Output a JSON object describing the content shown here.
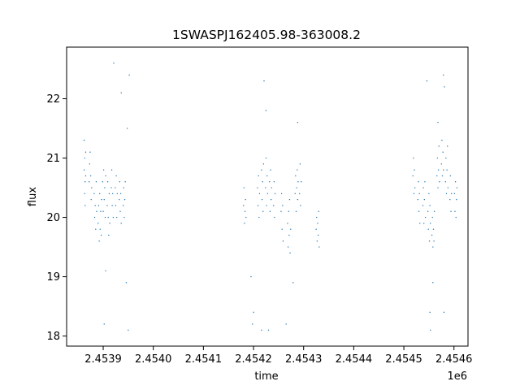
{
  "chart_data": {
    "type": "scatter",
    "title": "1SWASPJ162405.98-363008.2",
    "xlabel": "time",
    "ylabel": "flux",
    "x_offset_label": "1e6",
    "xlim": [
      2453827,
      2454628
    ],
    "ylim": [
      17.83,
      22.87
    ],
    "x_ticks": [
      2453900,
      2454000,
      2454100,
      2454200,
      2454300,
      2454400,
      2454500,
      2454600
    ],
    "x_tick_labels": [
      "2.4539",
      "2.4540",
      "2.4541",
      "2.4542",
      "2.4543",
      "2.4544",
      "2.4545",
      "2.4546"
    ],
    "y_ticks": [
      18,
      19,
      20,
      21,
      22
    ],
    "y_tick_labels": [
      "18",
      "19",
      "20",
      "21",
      "22"
    ],
    "grid": false,
    "marker_color": "#1f77b4",
    "series": [
      {
        "points": [
          [
            2453862,
            21.3
          ],
          [
            2453862,
            20.8
          ],
          [
            2453863,
            20.4
          ],
          [
            2453863,
            21.0
          ],
          [
            2453864,
            20.6
          ],
          [
            2453864,
            20.2
          ],
          [
            2453865,
            21.1
          ],
          [
            2453865,
            20.7
          ],
          [
            2453872,
            20.6
          ],
          [
            2453873,
            20.9
          ],
          [
            2453874,
            21.1
          ],
          [
            2453875,
            20.7
          ],
          [
            2453876,
            20.3
          ],
          [
            2453877,
            20.5
          ],
          [
            2453882,
            20.4
          ],
          [
            2453883,
            20.0
          ],
          [
            2453884,
            20.2
          ],
          [
            2453885,
            19.8
          ],
          [
            2453886,
            20.6
          ],
          [
            2453887,
            20.1
          ],
          [
            2453890,
            19.9
          ],
          [
            2453891,
            20.2
          ],
          [
            2453892,
            19.6
          ],
          [
            2453893,
            20.4
          ],
          [
            2453894,
            19.8
          ],
          [
            2453895,
            20.1
          ],
          [
            2453896,
            19.7
          ],
          [
            2453897,
            20.3
          ],
          [
            2453899,
            20.6
          ],
          [
            2453900,
            20.1
          ],
          [
            2453901,
            20.8
          ],
          [
            2453902,
            20.3
          ],
          [
            2453903,
            20.5
          ],
          [
            2453904,
            20.0
          ],
          [
            2453905,
            20.7
          ],
          [
            2453908,
            20.2
          ],
          [
            2453909,
            20.6
          ],
          [
            2453910,
            20.0
          ],
          [
            2453911,
            19.7
          ],
          [
            2453912,
            20.4
          ],
          [
            2453913,
            19.9
          ],
          [
            2453916,
            20.5
          ],
          [
            2453917,
            20.8
          ],
          [
            2453918,
            20.2
          ],
          [
            2453919,
            20.4
          ],
          [
            2453920,
            20.0
          ],
          [
            2453924,
            20.5
          ],
          [
            2453925,
            20.2
          ],
          [
            2453926,
            20.7
          ],
          [
            2453927,
            20.0
          ],
          [
            2453928,
            20.4
          ],
          [
            2453932,
            20.3
          ],
          [
            2453933,
            20.6
          ],
          [
            2453934,
            20.1
          ],
          [
            2453935,
            20.4
          ],
          [
            2453936,
            19.9
          ],
          [
            2453940,
            20.2
          ],
          [
            2453941,
            20.5
          ],
          [
            2453942,
            20.0
          ],
          [
            2453943,
            20.3
          ],
          [
            2453944,
            20.6
          ],
          [
            2453948,
            21.5
          ],
          [
            2453936,
            22.1
          ],
          [
            2453952,
            22.4
          ],
          [
            2453921,
            22.6
          ],
          [
            2453905,
            19.1
          ],
          [
            2453902,
            18.2
          ],
          [
            2453950,
            18.1
          ],
          [
            2453946,
            18.9
          ],
          [
            2454180,
            20.2
          ],
          [
            2454181,
            20.5
          ],
          [
            2454182,
            19.9
          ],
          [
            2454183,
            20.1
          ],
          [
            2454184,
            20.3
          ],
          [
            2454185,
            20.0
          ],
          [
            2454195,
            19.0
          ],
          [
            2454198,
            18.2
          ],
          [
            2454200,
            18.4
          ],
          [
            2454208,
            20.5
          ],
          [
            2454209,
            20.2
          ],
          [
            2454210,
            20.7
          ],
          [
            2454211,
            20.0
          ],
          [
            2454212,
            20.4
          ],
          [
            2454216,
            20.8
          ],
          [
            2454217,
            20.3
          ],
          [
            2454218,
            20.6
          ],
          [
            2454219,
            20.1
          ],
          [
            2454220,
            20.9
          ],
          [
            2454224,
            20.5
          ],
          [
            2454225,
            21.0
          ],
          [
            2454226,
            20.2
          ],
          [
            2454227,
            20.7
          ],
          [
            2454228,
            20.4
          ],
          [
            2454232,
            20.6
          ],
          [
            2454233,
            20.1
          ],
          [
            2454234,
            20.8
          ],
          [
            2454235,
            20.3
          ],
          [
            2454236,
            20.5
          ],
          [
            2454240,
            20.2
          ],
          [
            2454241,
            20.6
          ],
          [
            2454242,
            20.0
          ],
          [
            2454243,
            20.4
          ],
          [
            2454221,
            22.3
          ],
          [
            2454225,
            21.8
          ],
          [
            2454216,
            18.1
          ],
          [
            2454230,
            18.1
          ],
          [
            2454255,
            20.1
          ],
          [
            2454256,
            20.4
          ],
          [
            2454257,
            19.8
          ],
          [
            2454258,
            20.2
          ],
          [
            2454259,
            19.6
          ],
          [
            2454268,
            19.9
          ],
          [
            2454269,
            19.5
          ],
          [
            2454270,
            20.1
          ],
          [
            2454271,
            19.7
          ],
          [
            2454272,
            20.3
          ],
          [
            2454273,
            19.4
          ],
          [
            2454274,
            19.8
          ],
          [
            2454283,
            20.4
          ],
          [
            2454284,
            20.7
          ],
          [
            2454285,
            20.1
          ],
          [
            2454286,
            20.5
          ],
          [
            2454287,
            20.8
          ],
          [
            2454288,
            20.3
          ],
          [
            2454289,
            20.6
          ],
          [
            2454292,
            20.4
          ],
          [
            2454293,
            20.9
          ],
          [
            2454294,
            20.2
          ],
          [
            2454295,
            20.6
          ],
          [
            2454265,
            18.2
          ],
          [
            2454288,
            21.6
          ],
          [
            2454279,
            18.9
          ],
          [
            2454325,
            19.8
          ],
          [
            2454326,
            20.0
          ],
          [
            2454327,
            19.6
          ],
          [
            2454328,
            19.9
          ],
          [
            2454329,
            19.7
          ],
          [
            2454330,
            20.1
          ],
          [
            2454331,
            19.5
          ],
          [
            2454518,
            20.7
          ],
          [
            2454519,
            21.0
          ],
          [
            2454520,
            20.4
          ],
          [
            2454521,
            20.8
          ],
          [
            2454522,
            20.5
          ],
          [
            2454528,
            20.3
          ],
          [
            2454529,
            20.6
          ],
          [
            2454530,
            20.1
          ],
          [
            2454531,
            20.4
          ],
          [
            2454532,
            19.9
          ],
          [
            2454538,
            20.2
          ],
          [
            2454539,
            20.5
          ],
          [
            2454540,
            19.9
          ],
          [
            2454541,
            20.3
          ],
          [
            2454542,
            20.6
          ],
          [
            2454543,
            20.0
          ],
          [
            2454548,
            20.1
          ],
          [
            2454549,
            19.8
          ],
          [
            2454550,
            20.4
          ],
          [
            2454551,
            19.6
          ],
          [
            2454552,
            20.2
          ],
          [
            2454553,
            19.9
          ],
          [
            2454556,
            19.7
          ],
          [
            2454557,
            20.0
          ],
          [
            2454558,
            19.5
          ],
          [
            2454559,
            19.8
          ],
          [
            2454560,
            19.6
          ],
          [
            2454561,
            20.1
          ],
          [
            2454566,
            20.7
          ],
          [
            2454567,
            21.0
          ],
          [
            2454568,
            20.5
          ],
          [
            2454569,
            20.8
          ],
          [
            2454570,
            21.2
          ],
          [
            2454571,
            20.6
          ],
          [
            2454575,
            20.9
          ],
          [
            2454576,
            21.3
          ],
          [
            2454577,
            20.7
          ],
          [
            2454578,
            21.1
          ],
          [
            2454579,
            20.8
          ],
          [
            2454583,
            20.6
          ],
          [
            2454584,
            21.0
          ],
          [
            2454585,
            20.4
          ],
          [
            2454586,
            20.8
          ],
          [
            2454587,
            21.2
          ],
          [
            2454588,
            20.5
          ],
          [
            2454592,
            20.3
          ],
          [
            2454593,
            20.7
          ],
          [
            2454594,
            20.1
          ],
          [
            2454595,
            20.4
          ],
          [
            2454601,
            20.4
          ],
          [
            2454602,
            20.1
          ],
          [
            2454603,
            20.6
          ],
          [
            2454604,
            20.0
          ],
          [
            2454605,
            20.3
          ],
          [
            2454606,
            20.5
          ],
          [
            2454579,
            22.4
          ],
          [
            2454581,
            22.2
          ],
          [
            2454568,
            21.6
          ],
          [
            2454552,
            18.4
          ],
          [
            2454553,
            18.1
          ],
          [
            2454558,
            18.9
          ],
          [
            2454580,
            18.4
          ],
          [
            2454546,
            22.3
          ]
        ]
      }
    ]
  }
}
